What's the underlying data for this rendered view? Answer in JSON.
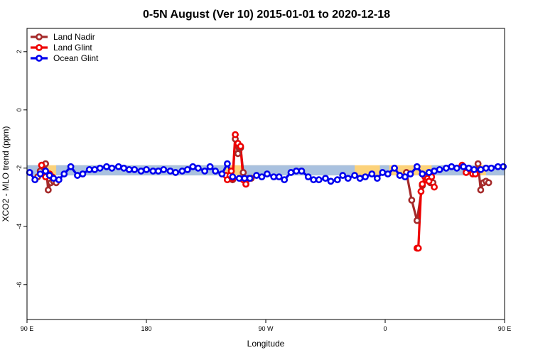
{
  "chart_data": {
    "type": "line",
    "title": "0-5N August (Ver 10)   2015-01-01 to 2020-12-18",
    "xlabel": "Longitude",
    "ylabel": "XCO2 - MLO trend (ppm)",
    "xlim": [
      90,
      450
    ],
    "ylim": [
      -7.2,
      2.8
    ],
    "x_ticks": [
      {
        "value": 90,
        "label": "90 E"
      },
      {
        "value": 180,
        "label": "180"
      },
      {
        "value": 270,
        "label": "90 W"
      },
      {
        "value": 360,
        "label": "0"
      },
      {
        "value": 450,
        "label": "90 E"
      }
    ],
    "y_ticks": [
      {
        "value": 2,
        "label": "2"
      },
      {
        "value": 0,
        "label": "0"
      },
      {
        "value": -2,
        "label": "-2"
      },
      {
        "value": -4,
        "label": "-4"
      },
      {
        "value": -6,
        "label": "-6"
      }
    ],
    "legend_position": "top-left",
    "bands": [
      {
        "color": "#fcd27a",
        "x0": 90,
        "x1": 450,
        "y0": -2.25,
        "y1": -1.9
      },
      {
        "color": "#a9c1df",
        "x0": 90,
        "x1": 102,
        "y0": -2.25,
        "y1": -1.9
      },
      {
        "color": "#a9c1df",
        "x0": 112,
        "x1": 239,
        "y0": -2.25,
        "y1": -1.9
      },
      {
        "color": "#a9c1df",
        "x0": 252,
        "x1": 337,
        "y0": -2.25,
        "y1": -1.9
      },
      {
        "color": "#a9c1df",
        "x0": 356,
        "x1": 363,
        "y0": -2.25,
        "y1": -1.9
      },
      {
        "color": "#a9c1df",
        "x0": 395,
        "x1": 430,
        "y0": -2.25,
        "y1": -1.9
      },
      {
        "color": "#a9c1df",
        "x0": 436,
        "x1": 450,
        "y0": -2.25,
        "y1": -1.9
      }
    ],
    "series": [
      {
        "name": "Land Nadir",
        "color": "#a52a2a",
        "segments": [
          {
            "x": [
              98,
              100,
              102,
              104,
              106,
              108,
              110,
              112
            ],
            "y": [
              -2.3,
              -2.1,
              -2.2,
              -1.85,
              -2.75,
              -2.5,
              -2.45,
              -2.5
            ]
          },
          {
            "x": [
              243,
              245,
              247,
              249,
              251,
              253,
              255,
              257,
              259
            ],
            "y": [
              -2.35,
              -2.4,
              -1.0,
              -1.5,
              -1.3,
              -2.15,
              -2.45,
              -2.35,
              -2.35
            ]
          },
          {
            "x": [
              376,
              380,
              384,
              388,
              390,
              392,
              394,
              396
            ],
            "y": [
              -2.15,
              -3.1,
              -3.8,
              -2.6,
              -2.3,
              -2.35,
              -2.5,
              -2.5
            ]
          },
          {
            "x": [
              428,
              430,
              432,
              434,
              436,
              438
            ],
            "y": [
              -2.1,
              -1.85,
              -2.75,
              -2.5,
              -2.45,
              -2.5
            ]
          }
        ]
      },
      {
        "name": "Land Glint",
        "color": "#ee0000",
        "segments": [
          {
            "x": [
              101,
              104,
              107,
              109
            ],
            "y": [
              -1.9,
              -2.3,
              -2.2,
              -2.3
            ]
          },
          {
            "x": [
              240,
              241,
              243,
              244,
              245,
              247,
              249,
              251,
              253,
              255
            ],
            "y": [
              -2.25,
              -2.4,
              -2.25,
              -2.1,
              -2.35,
              -0.85,
              -1.15,
              -1.25,
              -2.4,
              -2.55
            ]
          },
          {
            "x": [
              384,
              385,
              387,
              388,
              390,
              391,
              392,
              393,
              395,
              397
            ],
            "y": [
              -4.75,
              -4.75,
              -2.8,
              -2.55,
              -2.3,
              -2.4,
              -2.35,
              -2.45,
              -2.3,
              -2.65
            ]
          },
          {
            "x": [
              418,
              421,
              424,
              426,
              428
            ],
            "y": [
              -1.9,
              -2.15,
              -2.05,
              -2.2,
              -2.2
            ]
          }
        ]
      },
      {
        "name": "Ocean Glint",
        "color": "#0000ee",
        "segments": [
          {
            "x": [
              92,
              96,
              100,
              104,
              107,
              110,
              114,
              118,
              123,
              128,
              132,
              137,
              141,
              145,
              150,
              154,
              159,
              163,
              167,
              171,
              176,
              180,
              185,
              189,
              193,
              198,
              202,
              207,
              211,
              215,
              219,
              224,
              228,
              232,
              237,
              241,
              245,
              250,
              254,
              258,
              263,
              267,
              271,
              276,
              280,
              284,
              289,
              293,
              297,
              302,
              306,
              310,
              315,
              319,
              324,
              328,
              332,
              337,
              341,
              345,
              350,
              354,
              358,
              362,
              367,
              371,
              375,
              379,
              384,
              388,
              393,
              397,
              401,
              406,
              410,
              414,
              419,
              423,
              427,
              432,
              436,
              440,
              445,
              449
            ],
            "y": [
              -2.15,
              -2.4,
              -2.2,
              -2.1,
              -2.25,
              -2.35,
              -2.4,
              -2.2,
              -1.95,
              -2.25,
              -2.2,
              -2.05,
              -2.05,
              -2.0,
              -1.95,
              -2.0,
              -1.95,
              -2.0,
              -2.05,
              -2.05,
              -2.1,
              -2.05,
              -2.1,
              -2.1,
              -2.05,
              -2.1,
              -2.15,
              -2.1,
              -2.05,
              -1.95,
              -2.0,
              -2.1,
              -1.95,
              -2.1,
              -2.2,
              -1.85,
              -2.3,
              -2.35,
              -2.35,
              -2.35,
              -2.25,
              -2.3,
              -2.2,
              -2.3,
              -2.3,
              -2.4,
              -2.15,
              -2.1,
              -2.1,
              -2.3,
              -2.4,
              -2.4,
              -2.35,
              -2.45,
              -2.4,
              -2.25,
              -2.35,
              -2.25,
              -2.35,
              -2.3,
              -2.2,
              -2.35,
              -2.15,
              -2.2,
              -2.0,
              -2.25,
              -2.3,
              -2.2,
              -1.95,
              -2.2,
              -2.15,
              -2.1,
              -2.05,
              -2.0,
              -1.95,
              -2.0,
              -1.95,
              -2.0,
              -2.05,
              -2.05,
              -2.0,
              -2.0,
              -1.95,
              -1.95
            ]
          }
        ]
      }
    ]
  }
}
